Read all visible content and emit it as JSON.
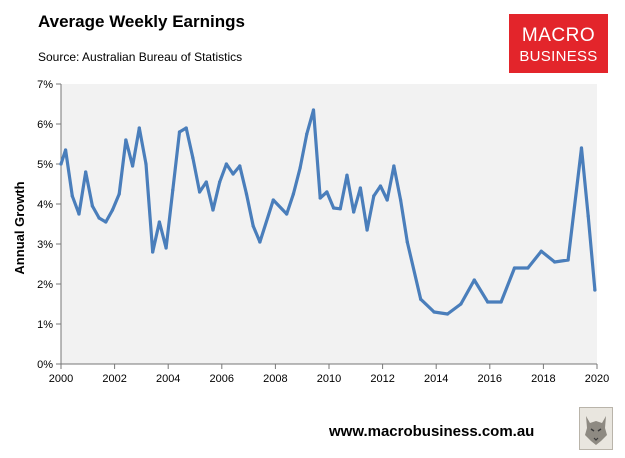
{
  "header": {
    "title": "Average Weekly Earnings",
    "source": "Source: Australian Bureau of Statistics"
  },
  "logo": {
    "line1": "MACRO",
    "line2": "BUSINESS",
    "color": "#e3252b"
  },
  "footer": {
    "url": "www.macrobusiness.com.au"
  },
  "chart_data": {
    "type": "line",
    "title": "Average Weekly Earnings",
    "xlabel": "",
    "ylabel": "Annual Growth",
    "xlim": [
      2000,
      2020
    ],
    "ylim": [
      0,
      7
    ],
    "grid": false,
    "plot_background": "#f2f2f2",
    "x_ticks": [
      2000,
      2002,
      2004,
      2006,
      2008,
      2010,
      2012,
      2014,
      2016,
      2018,
      2020
    ],
    "y_ticks": [
      0,
      1,
      2,
      3,
      4,
      5,
      6,
      7
    ],
    "y_tick_labels": [
      "0%",
      "1%",
      "2%",
      "3%",
      "4%",
      "5%",
      "6%",
      "7%"
    ],
    "series": [
      {
        "name": "Annual Growth",
        "color": "#4a7ebb",
        "x": [
          2000.0,
          2000.17,
          2000.42,
          2000.67,
          2000.92,
          2001.17,
          2001.42,
          2001.67,
          2001.92,
          2002.17,
          2002.42,
          2002.67,
          2002.92,
          2003.17,
          2003.42,
          2003.67,
          2003.92,
          2004.17,
          2004.42,
          2004.67,
          2004.92,
          2005.17,
          2005.42,
          2005.67,
          2005.92,
          2006.17,
          2006.42,
          2006.67,
          2006.92,
          2007.17,
          2007.42,
          2007.92,
          2008.42,
          2008.67,
          2008.92,
          2009.17,
          2009.42,
          2009.67,
          2009.92,
          2010.17,
          2010.42,
          2010.67,
          2010.92,
          2011.17,
          2011.42,
          2011.67,
          2011.92,
          2012.17,
          2012.42,
          2012.67,
          2012.92,
          2013.42,
          2013.92,
          2014.42,
          2014.92,
          2015.42,
          2015.92,
          2016.42,
          2016.92,
          2017.42,
          2017.92,
          2018.42,
          2018.92,
          2019.42,
          2019.67,
          2019.92
        ],
        "values": [
          5.0,
          5.35,
          4.2,
          3.75,
          4.8,
          3.95,
          3.65,
          3.55,
          3.85,
          4.25,
          5.6,
          4.95,
          5.9,
          5.0,
          2.8,
          3.55,
          2.9,
          4.35,
          5.8,
          5.9,
          5.15,
          4.3,
          4.55,
          3.85,
          4.55,
          5.0,
          4.75,
          4.95,
          4.25,
          3.45,
          3.05,
          4.1,
          3.75,
          4.25,
          4.9,
          5.75,
          6.35,
          4.15,
          4.3,
          3.9,
          3.88,
          4.72,
          3.8,
          4.4,
          3.35,
          4.2,
          4.45,
          4.1,
          4.95,
          4.1,
          3.05,
          1.62,
          1.3,
          1.25,
          1.5,
          2.1,
          1.55,
          1.55,
          2.4,
          2.4,
          2.82,
          2.55,
          2.6,
          5.4,
          3.7,
          1.85
        ]
      }
    ]
  }
}
